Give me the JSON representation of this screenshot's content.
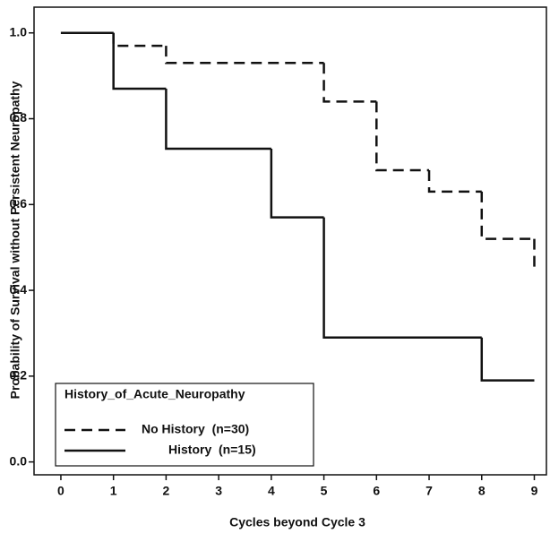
{
  "chart_data": {
    "type": "step",
    "xlabel": "Cycles beyond Cycle 3",
    "ylabel": "Probability of Survival without Persistent Neuropathy",
    "xlim": [
      -0.51,
      9.23
    ],
    "ylim": [
      -0.03,
      1.06
    ],
    "xticks": [
      0,
      1,
      2,
      3,
      4,
      5,
      6,
      7,
      8,
      9
    ],
    "yticks": [
      {
        "value": 0,
        "label": "0.0"
      },
      0.2,
      0.4,
      0.6,
      0.8,
      {
        "value": 1,
        "label": "1.0"
      }
    ],
    "legend_title": "History_of_Acute_Neuropathy",
    "legend": "lower left",
    "series": [
      {
        "name": "No History  (n=30)",
        "color": "#111111",
        "dash": "dashed",
        "x": [
          0,
          1,
          2,
          5,
          6,
          7,
          8,
          9
        ],
        "values": [
          1.0,
          0.97,
          0.93,
          0.84,
          0.68,
          0.63,
          0.52,
          0.45
        ]
      },
      {
        "name": "History  (n=15)",
        "color": "#111111",
        "dash": "solid",
        "x": [
          0,
          1,
          2,
          4,
          5,
          8,
          9
        ],
        "values": [
          1.0,
          0.87,
          0.73,
          0.57,
          0.29,
          0.19,
          0.19
        ]
      }
    ]
  }
}
